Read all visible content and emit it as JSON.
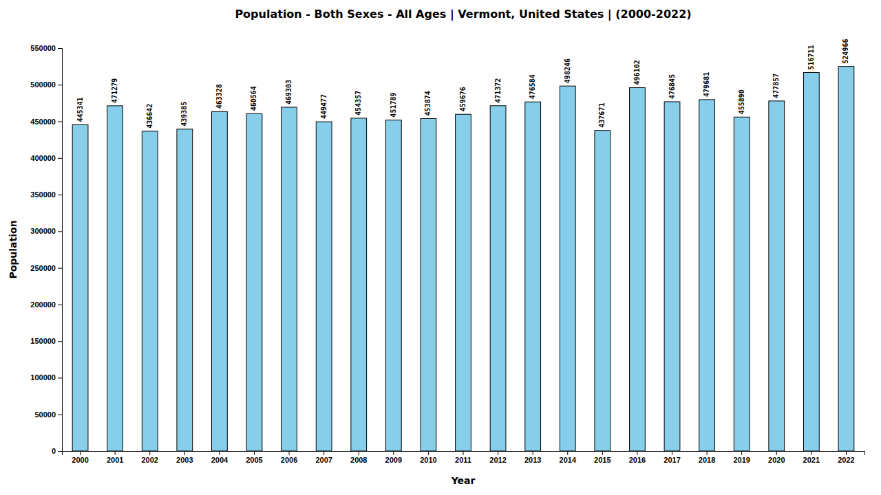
{
  "chart_data": {
    "type": "bar",
    "title": "Population - Both Sexes - All Ages | Vermont, United States |  (2000-2022)",
    "x_label": "Year",
    "y_label": "Population",
    "categories": [
      "2000",
      "2001",
      "2002",
      "2003",
      "2004",
      "2005",
      "2006",
      "2007",
      "2008",
      "2009",
      "2010",
      "2011",
      "2012",
      "2013",
      "2014",
      "2015",
      "2016",
      "2017",
      "2018",
      "2019",
      "2020",
      "2021",
      "2022"
    ],
    "values": [
      445341,
      471279,
      436642,
      439385,
      463328,
      460564,
      469303,
      449477,
      454357,
      451789,
      453874,
      459676,
      471372,
      476584,
      498246,
      437671,
      496102,
      476845,
      479681,
      455890,
      477857,
      516711,
      524966
    ],
    "color": "#87CEEB",
    "ylim": [
      0,
      550000
    ],
    "yticks": [
      0,
      50000,
      100000,
      150000,
      200000,
      250000,
      300000,
      350000,
      400000,
      450000,
      500000,
      550000
    ],
    "grid": false,
    "data_labels": true
  }
}
